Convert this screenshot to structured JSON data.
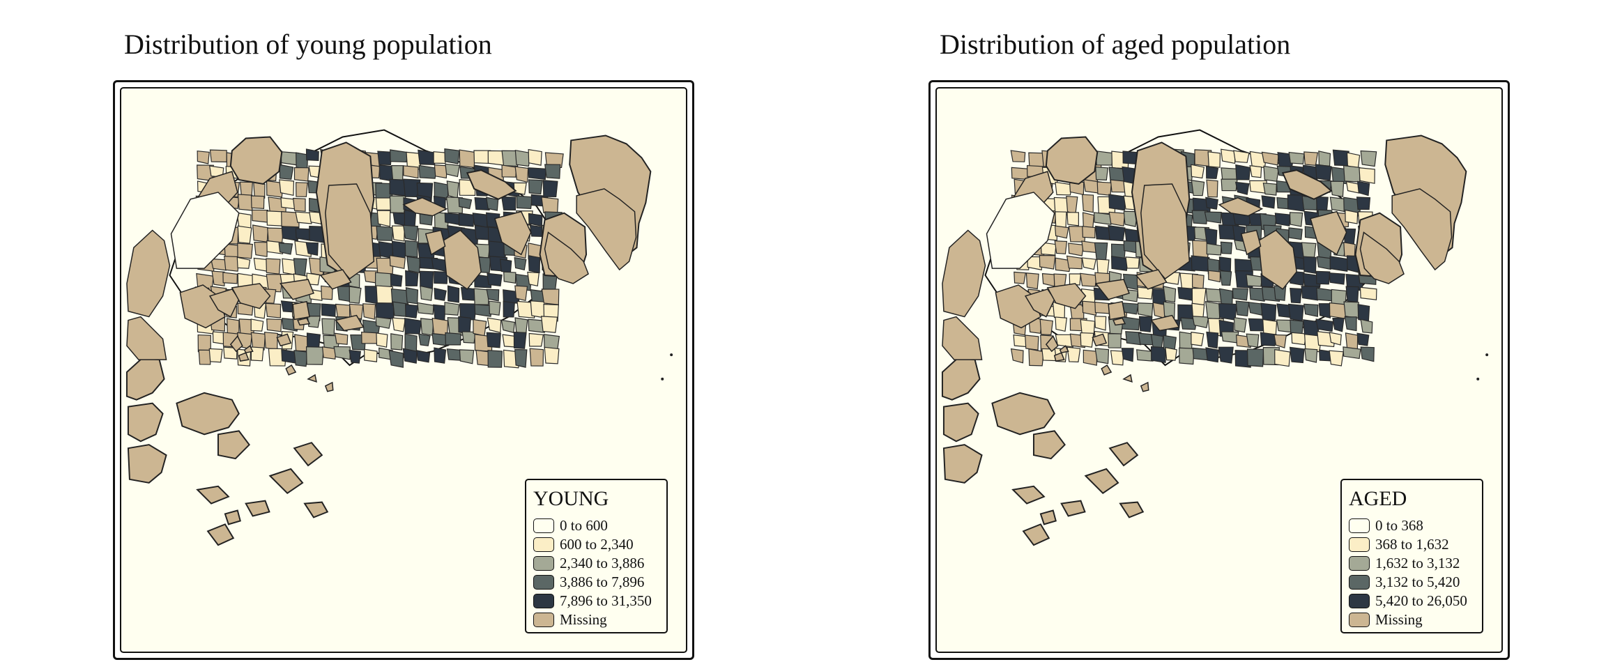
{
  "colors": {
    "class1": "#fffff0",
    "class2": "#fbeec6",
    "class3": "#a4a996",
    "class4": "#5b6765",
    "class5": "#2d3743",
    "missing": "#ccb692",
    "background": "#fffff0"
  },
  "maps": [
    {
      "title": "Distribution of young population",
      "legend": {
        "title": "YOUNG",
        "items": [
          {
            "label": "0 to 600",
            "color": "#fffff0"
          },
          {
            "label": "600 to 2,340",
            "color": "#fbeec6"
          },
          {
            "label": "2,340 to 3,886",
            "color": "#a4a996"
          },
          {
            "label": "3,886 to 7,896",
            "color": "#5b6765"
          },
          {
            "label": "7,896 to 31,350",
            "color": "#2d3743"
          },
          {
            "label": "Missing",
            "color": "#ccb692"
          }
        ]
      }
    },
    {
      "title": "Distribution of aged population",
      "legend": {
        "title": "AGED",
        "items": [
          {
            "label": "0 to 368",
            "color": "#fffff0"
          },
          {
            "label": "368 to 1,632",
            "color": "#fbeec6"
          },
          {
            "label": "1,632 to 3,132",
            "color": "#a4a996"
          },
          {
            "label": "3,132 to 5,420",
            "color": "#5b6765"
          },
          {
            "label": "5,420 to 26,050",
            "color": "#2d3743"
          },
          {
            "label": "Missing",
            "color": "#ccb692"
          }
        ]
      }
    }
  ]
}
